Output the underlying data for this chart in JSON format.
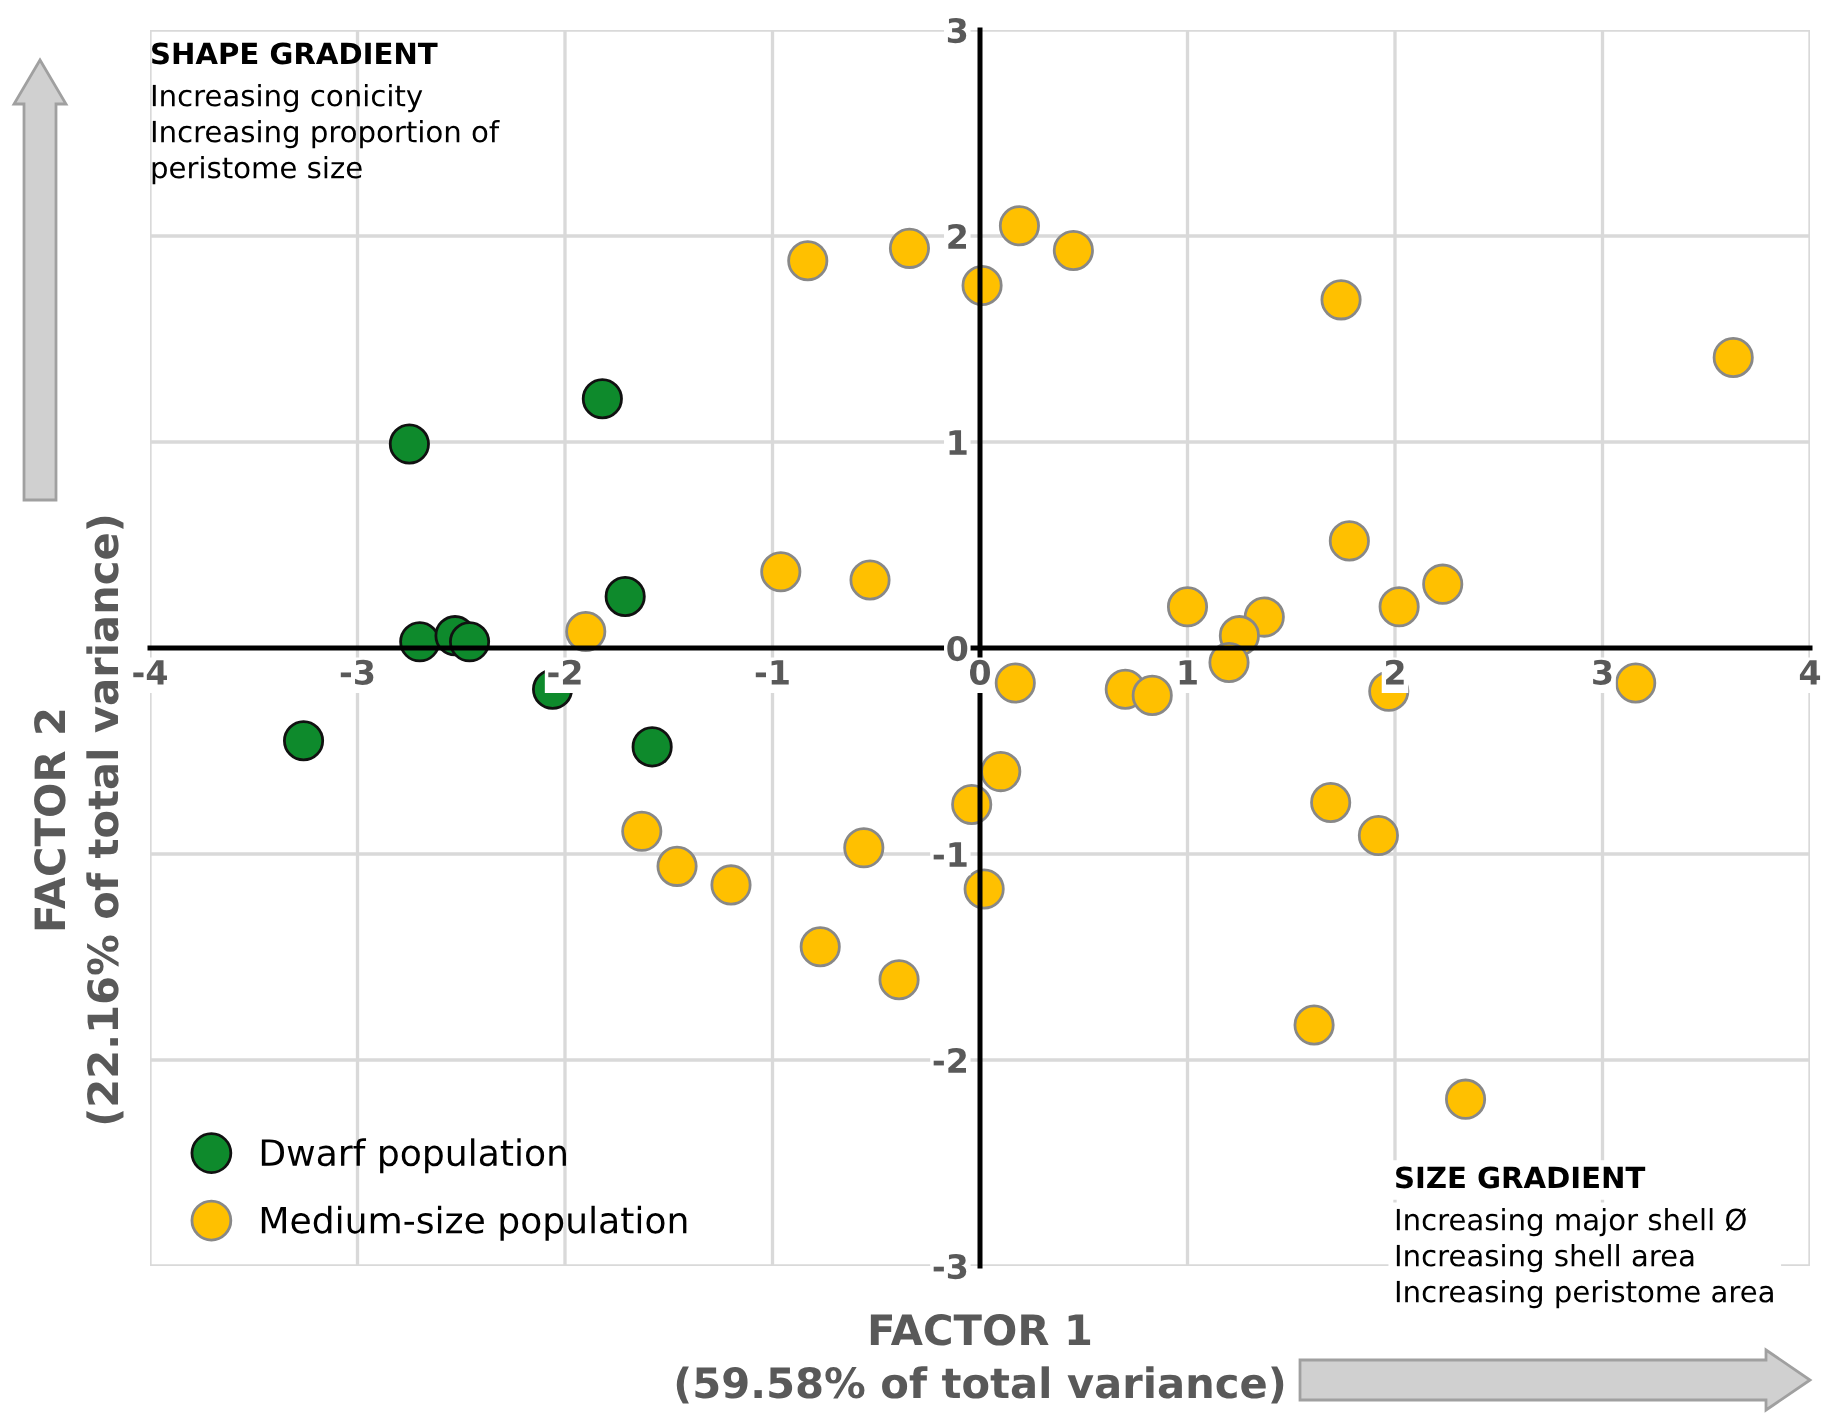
{
  "chart_data": {
    "type": "scatter",
    "xlabel": "FACTOR 1\n(59.58% of total variance)",
    "ylabel": "FACTOR 2\n(22.16% of total variance)",
    "xlim": [
      -4,
      4
    ],
    "ylim": [
      -3,
      3
    ],
    "xticks": [
      -4,
      -3,
      -2,
      -1,
      0,
      1,
      2,
      3,
      4
    ],
    "yticks": [
      -3,
      -2,
      -1,
      0,
      1,
      2,
      3
    ],
    "grid": true,
    "legend": "bottom left",
    "marker": "circle",
    "annotations": [
      "SHAPE GRADIENT",
      "Increasing conicity\nIncreasing proportion of\nperistome size",
      "SIZE GRADIENT",
      "Increasing major shell Ø\nIncreasing shell area\nIncreasing peristome area"
    ],
    "series": [
      {
        "name": "Dwarf population",
        "color": "#0e8a2c",
        "x": [
          -2.75,
          -1.82,
          -2.7,
          -2.53,
          -2.46,
          -1.71,
          -2.06,
          -3.26,
          -1.58
        ],
        "values": [
          0.99,
          1.21,
          0.03,
          0.06,
          0.03,
          0.25,
          -0.2,
          -0.45,
          -0.48
        ]
      },
      {
        "name": "Medium-size population",
        "color": "#ffc000",
        "x": [
          -0.83,
          -0.34,
          0.19,
          0.45,
          0.01,
          1.74,
          3.63,
          -0.96,
          -0.53,
          -1.9,
          1.0,
          1.78,
          2.02,
          2.23,
          1.37,
          1.25,
          1.2,
          0.17,
          0.7,
          0.83,
          1.97,
          3.16,
          0.1,
          -0.04,
          1.69,
          1.92,
          -1.63,
          -1.46,
          -1.2,
          -0.56,
          0.02,
          -0.77,
          -0.39,
          1.61,
          2.34
        ],
        "values": [
          1.88,
          1.94,
          2.05,
          1.93,
          1.76,
          1.69,
          1.41,
          0.37,
          0.33,
          0.08,
          0.2,
          0.52,
          0.2,
          0.31,
          0.15,
          0.06,
          -0.07,
          -0.17,
          -0.2,
          -0.23,
          -0.21,
          -0.17,
          -0.6,
          -0.76,
          -0.75,
          -0.91,
          -0.89,
          -1.06,
          -1.15,
          -0.97,
          -1.17,
          -1.45,
          -1.61,
          -1.83,
          -2.19
        ]
      }
    ]
  }
}
